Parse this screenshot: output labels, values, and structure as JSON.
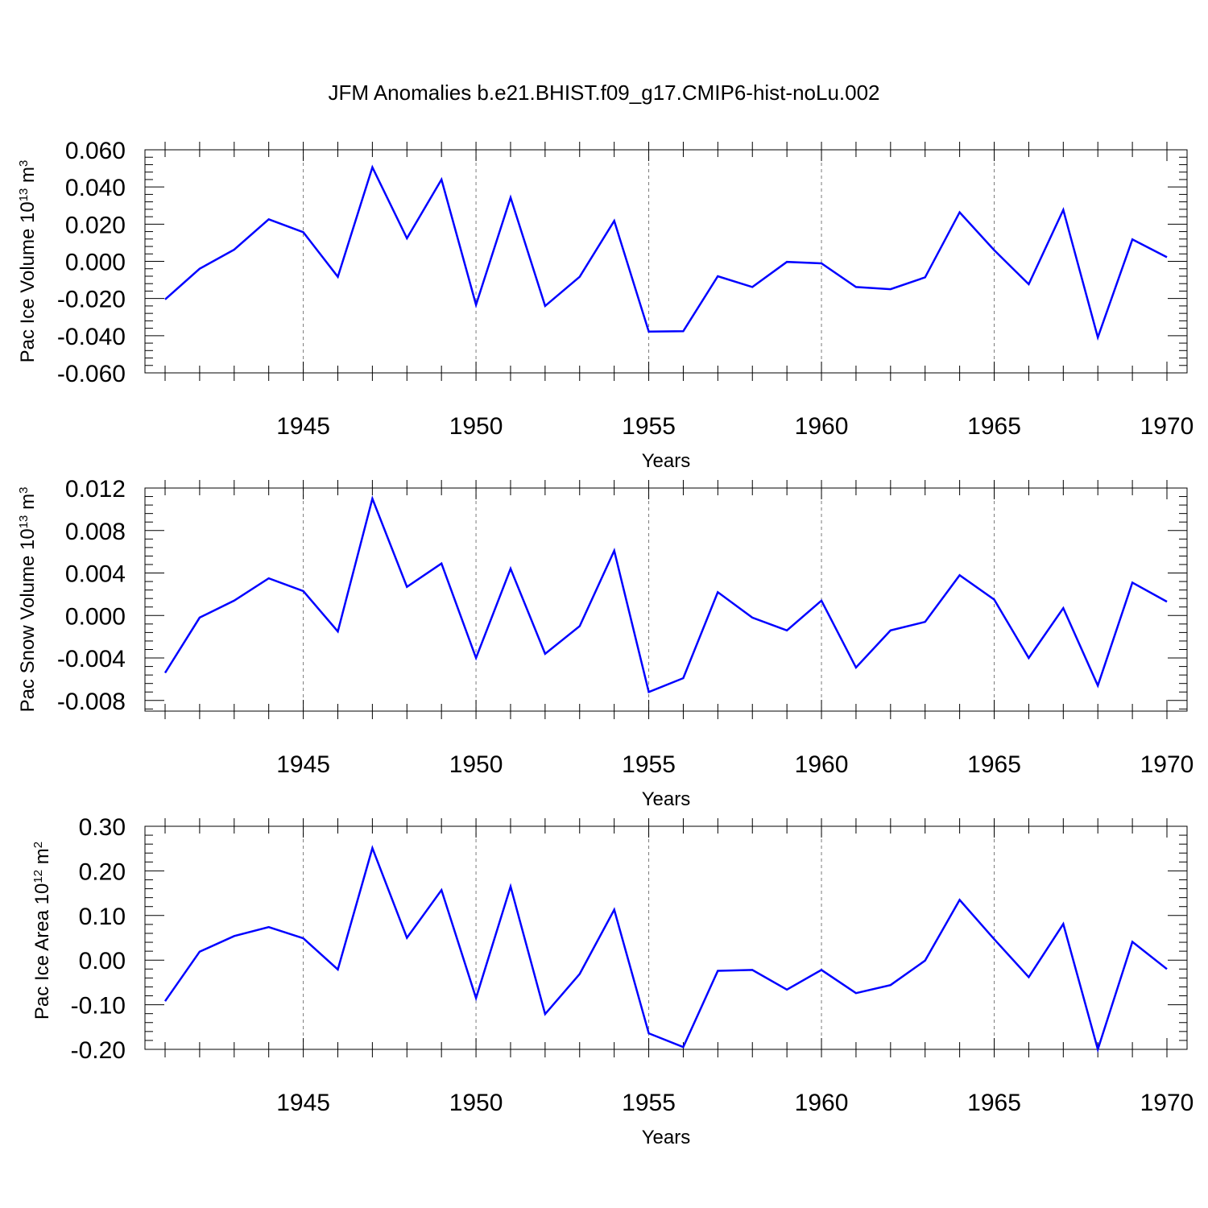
{
  "page": {
    "title": "JFM Anomalies b.e21.BHIST.f09_g17.CMIP6-hist-noLu.002"
  },
  "chart_data": [
    {
      "type": "line",
      "title": "",
      "xlabel": "Years",
      "ylabel_prefix": "Pac Ice Volume 10",
      "ylabel_exp1": "13",
      "ylabel_mid": " m",
      "ylabel_exp2": "3",
      "xlim": [
        1941,
        1970
      ],
      "ylim": [
        -0.06,
        0.06
      ],
      "xticks": [
        1945,
        1950,
        1955,
        1960,
        1965,
        1970
      ],
      "xtick_labels": [
        "1945",
        "1950",
        "1955",
        "1960",
        "1965",
        "1970"
      ],
      "yticks": [
        -0.06,
        -0.04,
        -0.02,
        0.0,
        0.02,
        0.04,
        0.06
      ],
      "ytick_labels": [
        "-0.060",
        "-0.040",
        "-0.020",
        "0.000",
        "0.020",
        "0.040",
        "0.060"
      ],
      "grid": "vertical dashed at major x ticks",
      "color": "#0000ff",
      "x": [
        1941,
        1942,
        1943,
        1944,
        1945,
        1946,
        1947,
        1948,
        1949,
        1950,
        1951,
        1952,
        1953,
        1954,
        1955,
        1956,
        1957,
        1958,
        1959,
        1960,
        1961,
        1962,
        1963,
        1964,
        1965,
        1966,
        1967,
        1968,
        1969,
        1970
      ],
      "series": [
        {
          "values": [
            -0.0205,
            -0.004,
            0.0063,
            0.0226,
            0.0157,
            -0.0083,
            0.0506,
            0.0124,
            0.044,
            -0.0234,
            0.0343,
            -0.024,
            -0.0083,
            0.0218,
            -0.0378,
            -0.0376,
            -0.008,
            -0.0138,
            -0.0003,
            -0.0011,
            -0.0138,
            -0.015,
            -0.0086,
            0.0264,
            0.006,
            -0.0123,
            0.0277,
            -0.0409,
            0.0118,
            0.0022
          ]
        }
      ]
    },
    {
      "type": "line",
      "title": "",
      "xlabel": "Years",
      "ylabel_prefix": "Pac Snow Volume 10",
      "ylabel_exp1": "13",
      "ylabel_mid": " m",
      "ylabel_exp2": "3",
      "xlim": [
        1941,
        1970
      ],
      "ylim": [
        -0.009,
        0.012
      ],
      "xticks": [
        1945,
        1950,
        1955,
        1960,
        1965,
        1970
      ],
      "xtick_labels": [
        "1945",
        "1950",
        "1955",
        "1960",
        "1965",
        "1970"
      ],
      "yticks": [
        -0.008,
        -0.004,
        0.0,
        0.004,
        0.008,
        0.012
      ],
      "ytick_labels": [
        "-0.008",
        "-0.004",
        "0.000",
        "0.004",
        "0.008",
        "0.012"
      ],
      "grid": "vertical dashed at major x ticks",
      "color": "#0000ff",
      "x": [
        1941,
        1942,
        1943,
        1944,
        1945,
        1946,
        1947,
        1948,
        1949,
        1950,
        1951,
        1952,
        1953,
        1954,
        1955,
        1956,
        1957,
        1958,
        1959,
        1960,
        1961,
        1962,
        1963,
        1964,
        1965,
        1966,
        1967,
        1968,
        1969,
        1970
      ],
      "series": [
        {
          "values": [
            -0.0054,
            -0.0002,
            0.0014,
            0.0035,
            0.0023,
            -0.0015,
            0.011,
            0.0027,
            0.0049,
            -0.004,
            0.0044,
            -0.0036,
            -0.001,
            0.0061,
            -0.0072,
            -0.0059,
            0.0022,
            -0.0002,
            -0.0014,
            0.0014,
            -0.0049,
            -0.0014,
            -0.0006,
            0.0038,
            0.0015,
            -0.004,
            0.0007,
            -0.0066,
            0.0031,
            0.0013
          ]
        }
      ]
    },
    {
      "type": "line",
      "title": "",
      "xlabel": "Years",
      "ylabel_prefix": "Pac Ice Area 10",
      "ylabel_exp1": "12",
      "ylabel_mid": " m",
      "ylabel_exp2": "2",
      "xlim": [
        1941,
        1970
      ],
      "ylim": [
        -0.2,
        0.3
      ],
      "xticks": [
        1945,
        1950,
        1955,
        1960,
        1965,
        1970
      ],
      "xtick_labels": [
        "1945",
        "1950",
        "1955",
        "1960",
        "1965",
        "1970"
      ],
      "yticks": [
        -0.2,
        -0.1,
        0.0,
        0.1,
        0.2,
        0.3
      ],
      "ytick_labels": [
        "-0.20",
        "-0.10",
        "0.00",
        "0.10",
        "0.20",
        "0.30"
      ],
      "grid": "vertical dashed at major x ticks",
      "color": "#0000ff",
      "x": [
        1941,
        1942,
        1943,
        1944,
        1945,
        1946,
        1947,
        1948,
        1949,
        1950,
        1951,
        1952,
        1953,
        1954,
        1955,
        1956,
        1957,
        1958,
        1959,
        1960,
        1961,
        1962,
        1963,
        1964,
        1965,
        1966,
        1967,
        1968,
        1969,
        1970
      ],
      "series": [
        {
          "values": [
            -0.092,
            0.019,
            0.054,
            0.074,
            0.049,
            -0.021,
            0.251,
            0.05,
            0.157,
            -0.085,
            0.165,
            -0.121,
            -0.031,
            0.113,
            -0.164,
            -0.195,
            -0.024,
            -0.022,
            -0.066,
            -0.022,
            -0.074,
            -0.056,
            -0.001,
            0.135,
            0.047,
            -0.038,
            0.081,
            -0.2,
            0.041,
            -0.02
          ]
        }
      ]
    }
  ]
}
